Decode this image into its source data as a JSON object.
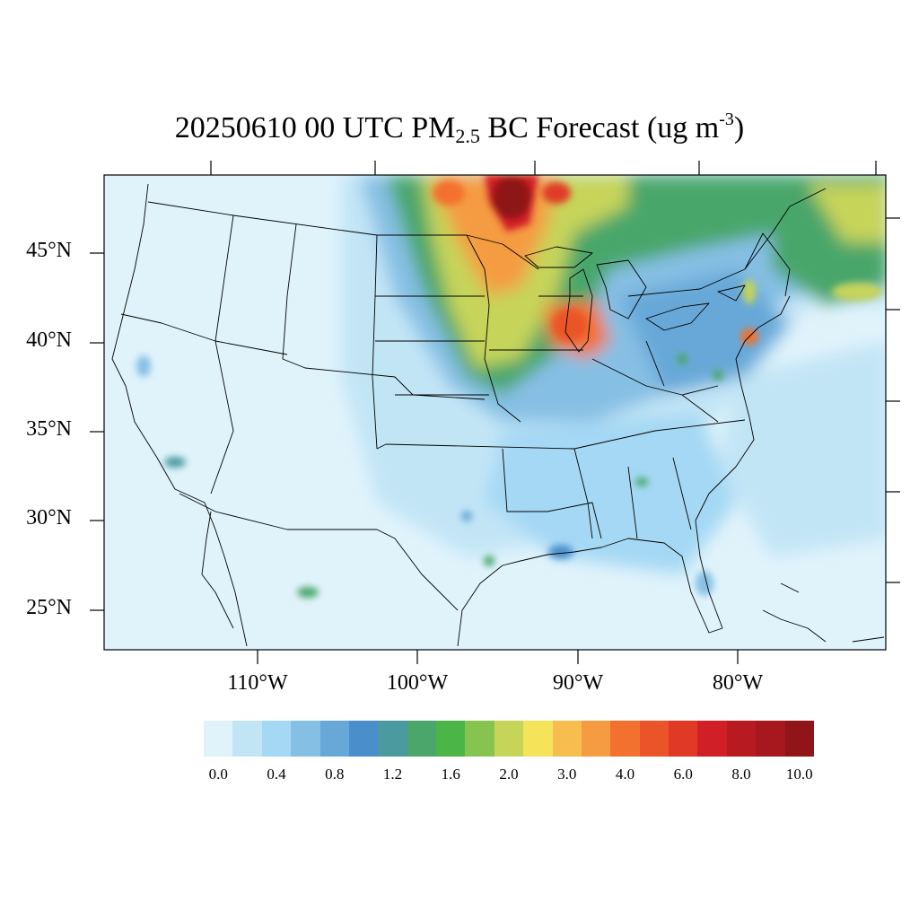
{
  "title": {
    "date": "20250610",
    "hour": "00 UTC",
    "species": "PM",
    "species_sub": "2.5",
    "product": "BC Forecast",
    "units_open": "(ug m",
    "units_sup": "-3",
    "units_close": ")"
  },
  "map": {
    "region": "Contiguous United States",
    "lat_labels": [
      "45°N",
      "40°N",
      "35°N",
      "30°N",
      "25°N"
    ],
    "lon_labels": [
      "110°W",
      "100°W",
      "90°W",
      "80°W"
    ]
  },
  "colorbar": {
    "colors": [
      "#e0f3fb",
      "#c2e5f6",
      "#a4d8f4",
      "#86bfe4",
      "#68a8d8",
      "#4a8fcc",
      "#4a9aa0",
      "#4aa66a",
      "#4cb548",
      "#86c450",
      "#c6d45a",
      "#f5e35a",
      "#f7bd4e",
      "#f59b42",
      "#f2712e",
      "#eb5428",
      "#e03a26",
      "#d01f26",
      "#b81a22",
      "#a6181e",
      "#8f1519"
    ],
    "tick_labels": [
      "0.0",
      "0.4",
      "0.8",
      "1.2",
      "1.6",
      "2.0",
      "3.0",
      "4.0",
      "6.0",
      "8.0",
      "10.0"
    ]
  }
}
